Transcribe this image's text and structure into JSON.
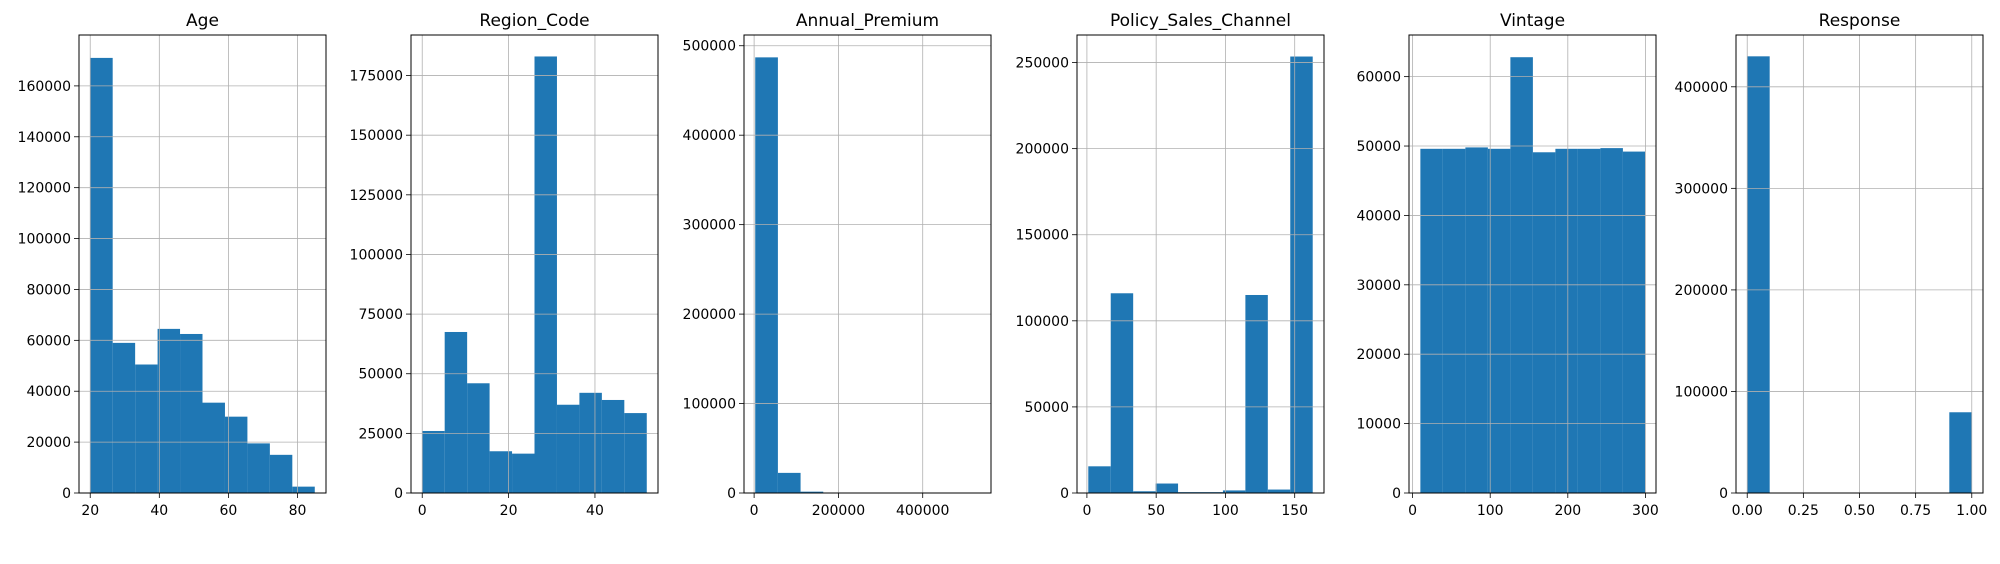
{
  "colors": {
    "bar": "#1f77b4",
    "grid": "#b0b0b0"
  },
  "chart_data": [
    {
      "type": "bar",
      "title": "Age",
      "xlim": [
        16.75,
        88.25
      ],
      "ylim": [
        0,
        180000
      ],
      "xticks": [
        20,
        40,
        60,
        80
      ],
      "xtick_labels": [
        "20",
        "40",
        "60",
        "80"
      ],
      "yticks": [
        0,
        20000,
        40000,
        60000,
        80000,
        100000,
        120000,
        140000,
        160000
      ],
      "ytick_labels": [
        "0",
        "20000",
        "40000",
        "60000",
        "80000",
        "100000",
        "120000",
        "140000",
        "160000"
      ],
      "bin_edges": [
        20,
        26.5,
        33,
        39.5,
        46,
        52.5,
        59,
        65.5,
        72,
        78.5,
        85
      ],
      "values": [
        171000,
        59000,
        50500,
        64500,
        62500,
        35500,
        30000,
        19500,
        15000,
        2500
      ],
      "grid": true
    },
    {
      "type": "bar",
      "title": "Region_Code",
      "xlim": [
        -2.6,
        54.6
      ],
      "ylim": [
        0,
        192000
      ],
      "xticks": [
        0,
        20,
        40
      ],
      "xtick_labels": [
        "0",
        "20",
        "40"
      ],
      "yticks": [
        0,
        25000,
        50000,
        75000,
        100000,
        125000,
        150000,
        175000
      ],
      "ytick_labels": [
        "0",
        "25000",
        "50000",
        "75000",
        "100000",
        "125000",
        "150000",
        "175000"
      ],
      "bin_edges": [
        0,
        5.2,
        10.4,
        15.6,
        20.8,
        26,
        31.2,
        36.4,
        41.6,
        46.8,
        52
      ],
      "values": [
        26000,
        67500,
        46000,
        17500,
        16500,
        183000,
        37000,
        42000,
        39000,
        33500
      ],
      "grid": true
    },
    {
      "type": "bar",
      "title": "Annual_Premium",
      "xlim": [
        -24000,
        562000
      ],
      "ylim": [
        0,
        512000
      ],
      "xticks": [
        0,
        200000,
        400000
      ],
      "xtick_labels": [
        "0",
        "200000",
        "400000"
      ],
      "yticks": [
        0,
        100000,
        200000,
        300000,
        400000,
        500000
      ],
      "ytick_labels": [
        "0",
        "100000",
        "200000",
        "300000",
        "400000",
        "500000"
      ],
      "bin_edges": [
        2630,
        56424,
        110218,
        164012,
        217806,
        271600,
        325394,
        379188,
        432982,
        486776,
        540570
      ],
      "values": [
        487000,
        22500,
        1500,
        150,
        60,
        40,
        20,
        20,
        10,
        10
      ],
      "grid": true
    },
    {
      "type": "bar",
      "title": "Policy_Sales_Channel",
      "xlim": [
        -7.15,
        171.15
      ],
      "ylim": [
        0,
        266000
      ],
      "xticks": [
        0,
        50,
        100,
        150
      ],
      "xtick_labels": [
        "0",
        "50",
        "100",
        "150"
      ],
      "yticks": [
        0,
        50000,
        100000,
        150000,
        200000,
        250000
      ],
      "ytick_labels": [
        "0",
        "50000",
        "100000",
        "150000",
        "200000",
        "250000"
      ],
      "bin_edges": [
        1,
        17.2,
        33.4,
        49.6,
        65.8,
        82,
        98.2,
        114.4,
        130.6,
        146.8,
        163
      ],
      "values": [
        15500,
        116000,
        1000,
        5500,
        500,
        500,
        1500,
        115000,
        2000,
        253500
      ],
      "grid": true
    },
    {
      "type": "bar",
      "title": "Vintage",
      "xlim": [
        -4.65,
        313.65
      ],
      "ylim": [
        0,
        66000
      ],
      "xticks": [
        0,
        100,
        200,
        300
      ],
      "xtick_labels": [
        "0",
        "100",
        "200",
        "300"
      ],
      "yticks": [
        0,
        10000,
        20000,
        30000,
        40000,
        50000,
        60000
      ],
      "ytick_labels": [
        "0",
        "10000",
        "20000",
        "30000",
        "40000",
        "50000",
        "60000"
      ],
      "bin_edges": [
        10,
        39,
        68,
        97,
        126,
        155,
        184,
        213,
        242,
        271,
        300
      ],
      "values": [
        49600,
        49600,
        49800,
        49600,
        62800,
        49100,
        49600,
        49600,
        49700,
        49200
      ],
      "grid": true
    },
    {
      "type": "bar",
      "title": "Response",
      "xlim": [
        -0.05,
        1.05
      ],
      "ylim": [
        0,
        451000
      ],
      "xticks": [
        0,
        0.25,
        0.5,
        0.75,
        1
      ],
      "xtick_labels": [
        "0.00",
        "0.25",
        "0.50",
        "0.75",
        "1.00"
      ],
      "yticks": [
        0,
        100000,
        200000,
        300000,
        400000
      ],
      "ytick_labels": [
        "0",
        "100000",
        "200000",
        "300000",
        "400000"
      ],
      "bin_edges": [
        0,
        0.1,
        0.2,
        0.3,
        0.4,
        0.5,
        0.6,
        0.7,
        0.8,
        0.9,
        1
      ],
      "values": [
        430000,
        0,
        0,
        0,
        0,
        0,
        0,
        0,
        0,
        79500
      ],
      "grid": true
    }
  ]
}
